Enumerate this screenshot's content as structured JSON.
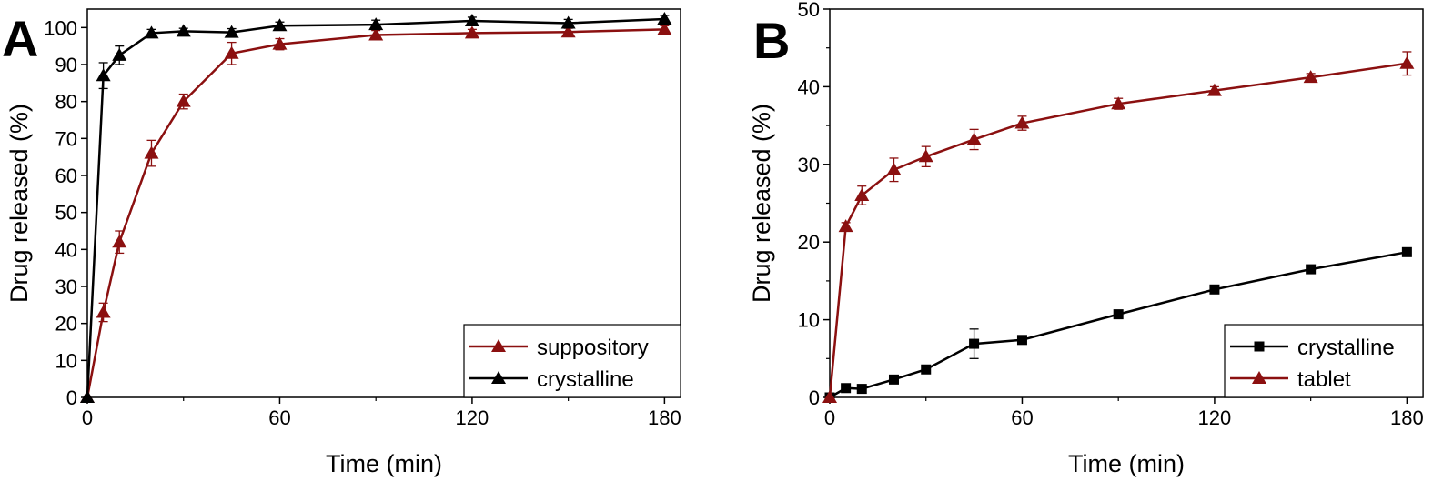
{
  "chart_data": [
    {
      "panel": "A",
      "type": "line",
      "xlabel": "Time (min)",
      "ylabel": "Drug released (%)",
      "xlim": [
        0,
        185
      ],
      "ylim": [
        0,
        105
      ],
      "xticks": [
        0,
        60,
        120,
        180
      ],
      "xticks_minor": [
        30,
        90,
        150
      ],
      "yticks": [
        0,
        10,
        20,
        30,
        40,
        50,
        60,
        70,
        80,
        90,
        100
      ],
      "legend_position": "bottom-right",
      "series": [
        {
          "name": "suppository",
          "color": "#8b1010",
          "marker": "triangle",
          "x": [
            0,
            5,
            10,
            20,
            30,
            45,
            60,
            90,
            120,
            150,
            180
          ],
          "y": [
            0,
            23,
            42,
            66,
            80,
            93,
            95.5,
            98,
            98.5,
            98.8,
            99.5
          ],
          "err": [
            0,
            2.5,
            3,
            3.5,
            2,
            3,
            1.5,
            1.2,
            1,
            1,
            1
          ]
        },
        {
          "name": "crystalline",
          "color": "#000000",
          "marker": "triangle",
          "x": [
            0,
            5,
            10,
            20,
            30,
            45,
            60,
            90,
            120,
            150,
            180
          ],
          "y": [
            0,
            87,
            92.5,
            98.5,
            99,
            98.7,
            100.5,
            100.8,
            101.8,
            101.2,
            102.3
          ],
          "err": [
            0,
            3.5,
            2.5,
            1,
            0.8,
            1,
            1,
            1.2,
            1,
            1,
            1
          ]
        }
      ]
    },
    {
      "panel": "B",
      "type": "line",
      "xlabel": "Time (min)",
      "ylabel": "Drug released (%)",
      "xlim": [
        0,
        185
      ],
      "ylim": [
        0,
        50
      ],
      "xticks": [
        0,
        60,
        120,
        180
      ],
      "xticks_minor": [
        30,
        90,
        150
      ],
      "yticks": [
        0,
        10,
        20,
        30,
        40,
        50
      ],
      "yticks_minor": [
        5,
        15,
        25,
        35,
        45
      ],
      "legend_position": "bottom-right",
      "series": [
        {
          "name": "crystalline",
          "color": "#000000",
          "marker": "square",
          "x": [
            0,
            5,
            10,
            20,
            30,
            45,
            60,
            90,
            120,
            150,
            180
          ],
          "y": [
            0,
            1.2,
            1.1,
            2.3,
            3.6,
            6.9,
            7.4,
            10.7,
            13.9,
            16.5,
            18.7
          ],
          "err": [
            0,
            0.3,
            0.3,
            0.3,
            0.3,
            1.9,
            0.4,
            0.3,
            0.3,
            0.3,
            0.3
          ]
        },
        {
          "name": "tablet",
          "color": "#8b1010",
          "marker": "triangle",
          "x": [
            0,
            5,
            10,
            20,
            30,
            45,
            60,
            90,
            120,
            150,
            180
          ],
          "y": [
            0,
            22,
            26,
            29.3,
            31,
            33.2,
            35.3,
            37.8,
            39.5,
            41.2,
            43
          ],
          "err": [
            0,
            0.5,
            1.2,
            1.5,
            1.3,
            1.3,
            0.9,
            0.7,
            0.5,
            0.5,
            1.5
          ]
        }
      ]
    }
  ]
}
